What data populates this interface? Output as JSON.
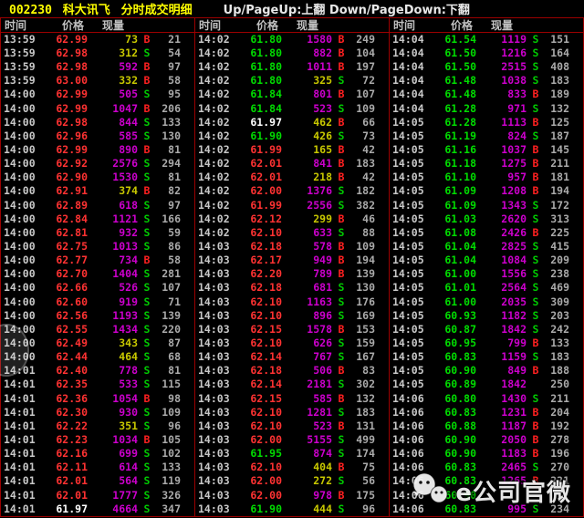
{
  "header": {
    "stock_code": "002230",
    "stock_name": "科大讯飞",
    "view_title": "分时成交明细",
    "nav_hint": "Up/PageUp:上翻 Down/PageDown:下翻"
  },
  "columns": {
    "time": "时间",
    "price": "价格",
    "volume": "现量"
  },
  "colors": {
    "up": "#ff3232",
    "down": "#00dc00",
    "flat": "#ffffff",
    "volL": "#cc00cc",
    "volS": "#c8c800",
    "buy": "#ff2020",
    "sell": "#00c800",
    "count": "#aaaaaa",
    "time": "#c8c8c8",
    "line": "#9c0000",
    "title": "#ffff00"
  },
  "watermark": {
    "text": "e公司官微",
    "icon": "wechat-icon"
  },
  "row_format": [
    "time",
    "price",
    "price_trend(up|down|flat)",
    "volume",
    "volume_color(p=purple,y=yellow)",
    "side(B|S)",
    "count"
  ],
  "panels": [
    {
      "rows": [
        [
          "13:59",
          "62.99",
          "up",
          "73",
          "y",
          "B",
          "21"
        ],
        [
          "13:59",
          "62.98",
          "up",
          "312",
          "y",
          "S",
          "54"
        ],
        [
          "13:59",
          "62.98",
          "up",
          "592",
          "p",
          "B",
          "97"
        ],
        [
          "13:59",
          "63.00",
          "up",
          "332",
          "y",
          "B",
          "58"
        ],
        [
          "14:00",
          "62.99",
          "up",
          "505",
          "p",
          "S",
          "95"
        ],
        [
          "14:00",
          "62.99",
          "up",
          "1047",
          "p",
          "B",
          "206"
        ],
        [
          "14:00",
          "62.98",
          "up",
          "844",
          "p",
          "S",
          "133"
        ],
        [
          "14:00",
          "62.96",
          "up",
          "585",
          "p",
          "S",
          "130"
        ],
        [
          "14:00",
          "62.99",
          "up",
          "890",
          "p",
          "B",
          "81"
        ],
        [
          "14:00",
          "62.92",
          "up",
          "2576",
          "p",
          "S",
          "294"
        ],
        [
          "14:00",
          "62.90",
          "up",
          "1530",
          "p",
          "S",
          "81"
        ],
        [
          "14:00",
          "62.91",
          "up",
          "374",
          "y",
          "B",
          "82"
        ],
        [
          "14:00",
          "62.89",
          "up",
          "618",
          "p",
          "S",
          "97"
        ],
        [
          "14:00",
          "62.84",
          "up",
          "1121",
          "p",
          "S",
          "166"
        ],
        [
          "14:00",
          "62.81",
          "up",
          "932",
          "p",
          "S",
          "59"
        ],
        [
          "14:00",
          "62.75",
          "up",
          "1013",
          "p",
          "S",
          "86"
        ],
        [
          "14:00",
          "62.77",
          "up",
          "734",
          "p",
          "B",
          "58"
        ],
        [
          "14:00",
          "62.70",
          "up",
          "1404",
          "p",
          "S",
          "281"
        ],
        [
          "14:00",
          "62.66",
          "up",
          "526",
          "p",
          "S",
          "107"
        ],
        [
          "14:00",
          "62.60",
          "up",
          "919",
          "p",
          "S",
          "71"
        ],
        [
          "14:00",
          "62.56",
          "up",
          "1193",
          "p",
          "S",
          "139"
        ],
        [
          "14:00",
          "62.55",
          "up",
          "1434",
          "p",
          "S",
          "220"
        ],
        [
          "14:00",
          "62.49",
          "up",
          "343",
          "y",
          "S",
          "87"
        ],
        [
          "14:00",
          "62.44",
          "up",
          "464",
          "y",
          "S",
          "68"
        ],
        [
          "14:01",
          "62.40",
          "up",
          "778",
          "p",
          "S",
          "81"
        ],
        [
          "14:01",
          "62.35",
          "up",
          "533",
          "p",
          "S",
          "115"
        ],
        [
          "14:01",
          "62.36",
          "up",
          "1054",
          "p",
          "B",
          "98"
        ],
        [
          "14:01",
          "62.30",
          "up",
          "930",
          "p",
          "S",
          "109"
        ],
        [
          "14:01",
          "62.22",
          "up",
          "351",
          "y",
          "S",
          "96"
        ],
        [
          "14:01",
          "62.23",
          "up",
          "1034",
          "p",
          "B",
          "105"
        ],
        [
          "14:01",
          "62.16",
          "up",
          "699",
          "p",
          "S",
          "102"
        ],
        [
          "14:01",
          "62.11",
          "up",
          "614",
          "p",
          "S",
          "133"
        ],
        [
          "14:01",
          "62.01",
          "up",
          "564",
          "p",
          "S",
          "119"
        ],
        [
          "14:01",
          "62.01",
          "up",
          "1777",
          "p",
          "S",
          "326"
        ],
        [
          "14:01",
          "61.97",
          "flat",
          "4664",
          "p",
          "S",
          "347"
        ]
      ]
    },
    {
      "rows": [
        [
          "14:02",
          "61.80",
          "down",
          "1580",
          "p",
          "B",
          "249"
        ],
        [
          "14:02",
          "61.80",
          "down",
          "882",
          "p",
          "B",
          "104"
        ],
        [
          "14:02",
          "61.80",
          "down",
          "1011",
          "p",
          "B",
          "197"
        ],
        [
          "14:02",
          "61.80",
          "down",
          "325",
          "y",
          "S",
          "72"
        ],
        [
          "14:02",
          "61.84",
          "down",
          "801",
          "p",
          "B",
          "107"
        ],
        [
          "14:02",
          "61.84",
          "down",
          "523",
          "p",
          "S",
          "109"
        ],
        [
          "14:02",
          "61.97",
          "flat",
          "462",
          "y",
          "B",
          "66"
        ],
        [
          "14:02",
          "61.90",
          "down",
          "426",
          "y",
          "S",
          "73"
        ],
        [
          "14:02",
          "61.99",
          "up",
          "165",
          "y",
          "B",
          "42"
        ],
        [
          "14:02",
          "62.01",
          "up",
          "841",
          "p",
          "B",
          "183"
        ],
        [
          "14:02",
          "62.01",
          "up",
          "218",
          "y",
          "B",
          "42"
        ],
        [
          "14:02",
          "62.00",
          "up",
          "1376",
          "p",
          "S",
          "182"
        ],
        [
          "14:02",
          "61.99",
          "up",
          "2556",
          "p",
          "S",
          "382"
        ],
        [
          "14:02",
          "62.12",
          "up",
          "299",
          "y",
          "B",
          "46"
        ],
        [
          "14:02",
          "62.10",
          "up",
          "633",
          "p",
          "S",
          "88"
        ],
        [
          "14:03",
          "62.18",
          "up",
          "578",
          "p",
          "B",
          "109"
        ],
        [
          "14:03",
          "62.17",
          "up",
          "949",
          "p",
          "B",
          "194"
        ],
        [
          "14:03",
          "62.20",
          "up",
          "789",
          "p",
          "B",
          "139"
        ],
        [
          "14:03",
          "62.18",
          "up",
          "681",
          "p",
          "S",
          "130"
        ],
        [
          "14:03",
          "62.10",
          "up",
          "1163",
          "p",
          "S",
          "176"
        ],
        [
          "14:03",
          "62.10",
          "up",
          "896",
          "p",
          "S",
          "169"
        ],
        [
          "14:03",
          "62.15",
          "up",
          "1578",
          "p",
          "B",
          "153"
        ],
        [
          "14:03",
          "62.10",
          "up",
          "626",
          "p",
          "S",
          "159"
        ],
        [
          "14:03",
          "62.14",
          "up",
          "767",
          "p",
          "S",
          "167"
        ],
        [
          "14:03",
          "62.18",
          "up",
          "506",
          "p",
          "B",
          "83"
        ],
        [
          "14:03",
          "62.14",
          "up",
          "2181",
          "p",
          "S",
          "302"
        ],
        [
          "14:03",
          "62.15",
          "up",
          "585",
          "p",
          "B",
          "132"
        ],
        [
          "14:03",
          "62.10",
          "up",
          "1281",
          "p",
          "S",
          "183"
        ],
        [
          "14:03",
          "62.10",
          "up",
          "523",
          "p",
          "B",
          "131"
        ],
        [
          "14:03",
          "62.00",
          "up",
          "5155",
          "p",
          "S",
          "499"
        ],
        [
          "14:03",
          "61.95",
          "down",
          "874",
          "p",
          "S",
          "174"
        ],
        [
          "14:03",
          "62.10",
          "up",
          "404",
          "y",
          "B",
          "75"
        ],
        [
          "14:03",
          "62.00",
          "up",
          "272",
          "y",
          "S",
          "56"
        ],
        [
          "14:03",
          "62.00",
          "up",
          "978",
          "p",
          "B",
          "175"
        ],
        [
          "14:03",
          "61.90",
          "down",
          "444",
          "y",
          "S",
          "96"
        ]
      ]
    },
    {
      "rows": [
        [
          "14:04",
          "61.54",
          "down",
          "1119",
          "p",
          "S",
          "151"
        ],
        [
          "14:04",
          "61.50",
          "down",
          "1216",
          "p",
          "S",
          "164"
        ],
        [
          "14:04",
          "61.50",
          "down",
          "2515",
          "p",
          "S",
          "408"
        ],
        [
          "14:04",
          "61.48",
          "down",
          "1038",
          "p",
          "S",
          "183"
        ],
        [
          "14:04",
          "61.48",
          "down",
          "833",
          "p",
          "B",
          "189"
        ],
        [
          "14:04",
          "61.28",
          "down",
          "971",
          "p",
          "S",
          "132"
        ],
        [
          "14:05",
          "61.28",
          "down",
          "1113",
          "p",
          "B",
          "125"
        ],
        [
          "14:05",
          "61.19",
          "down",
          "824",
          "p",
          "S",
          "187"
        ],
        [
          "14:05",
          "61.16",
          "down",
          "1037",
          "p",
          "B",
          "145"
        ],
        [
          "14:05",
          "61.18",
          "down",
          "1275",
          "p",
          "B",
          "211"
        ],
        [
          "14:05",
          "61.10",
          "down",
          "957",
          "p",
          "B",
          "181"
        ],
        [
          "14:05",
          "61.09",
          "down",
          "1208",
          "p",
          "B",
          "194"
        ],
        [
          "14:05",
          "61.09",
          "down",
          "1343",
          "p",
          "S",
          "172"
        ],
        [
          "14:05",
          "61.03",
          "down",
          "2620",
          "p",
          "S",
          "313"
        ],
        [
          "14:05",
          "61.08",
          "down",
          "2426",
          "p",
          "B",
          "225"
        ],
        [
          "14:05",
          "61.04",
          "down",
          "2825",
          "p",
          "S",
          "415"
        ],
        [
          "14:05",
          "61.04",
          "down",
          "1084",
          "p",
          "S",
          "209"
        ],
        [
          "14:05",
          "61.00",
          "down",
          "1556",
          "p",
          "S",
          "238"
        ],
        [
          "14:05",
          "61.01",
          "down",
          "2564",
          "p",
          "S",
          "469"
        ],
        [
          "14:05",
          "61.00",
          "down",
          "2035",
          "p",
          "S",
          "309"
        ],
        [
          "14:05",
          "60.93",
          "down",
          "1182",
          "p",
          "S",
          "203"
        ],
        [
          "14:05",
          "60.87",
          "down",
          "1842",
          "p",
          "S",
          "242"
        ],
        [
          "14:05",
          "60.95",
          "down",
          "799",
          "p",
          "B",
          "133"
        ],
        [
          "14:05",
          "60.83",
          "down",
          "1159",
          "p",
          "S",
          "183"
        ],
        [
          "14:05",
          "60.90",
          "down",
          "849",
          "p",
          "B",
          "188"
        ],
        [
          "14:05",
          "60.89",
          "down",
          "1842",
          "p",
          "",
          "250"
        ],
        [
          "14:06",
          "60.80",
          "down",
          "1430",
          "p",
          "S",
          "211"
        ],
        [
          "14:06",
          "60.83",
          "down",
          "1231",
          "p",
          "B",
          "204"
        ],
        [
          "14:06",
          "60.88",
          "down",
          "1187",
          "p",
          "B",
          "192"
        ],
        [
          "14:06",
          "60.90",
          "down",
          "2050",
          "p",
          "B",
          "278"
        ],
        [
          "14:06",
          "60.90",
          "down",
          "1183",
          "p",
          "B",
          "196"
        ],
        [
          "14:06",
          "60.83",
          "down",
          "2465",
          "p",
          "S",
          "270"
        ],
        [
          "14:06",
          "60.83",
          "down",
          "1265",
          "p",
          "B",
          "221"
        ],
        [
          "14:06",
          "60.90",
          "down",
          "",
          "",
          "",
          ""
        ],
        [
          "14:06",
          "60.83",
          "down",
          "995",
          "p",
          "S",
          "234"
        ]
      ]
    }
  ]
}
